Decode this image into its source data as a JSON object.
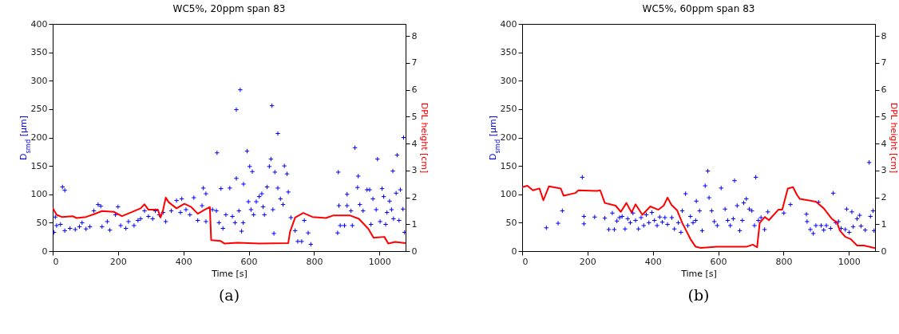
{
  "chart_data": [
    {
      "type": "scatter",
      "title": "WC5%, 20ppm span 83",
      "xlabel": "Time [s]",
      "ylabel": "D$_{smd}$ [μm]",
      "y2label": "DPL height [cm]",
      "xlim": [
        0,
        1080
      ],
      "xticks": [
        0,
        200,
        400,
        600,
        800,
        1000
      ],
      "ylim": [
        0,
        400
      ],
      "yticks": [
        0,
        50,
        100,
        150,
        200,
        250,
        300,
        350,
        400
      ],
      "y2lim": [
        0,
        8.45
      ],
      "y2ticks": [
        0,
        1,
        2,
        3,
        4,
        5,
        6,
        7,
        8
      ],
      "annotations": [
        "(a)"
      ],
      "series": [
        {
          "marker": "cross",
          "color": "#0000ff",
          "x": [
            4,
            8,
            12,
            24,
            30,
            37,
            37,
            53,
            69,
            82,
            90,
            102,
            114,
            126,
            139,
            147,
            151,
            167,
            175,
            192,
            200,
            208,
            224,
            232,
            249,
            261,
            269,
            281,
            293,
            306,
            314,
            326,
            338,
            346,
            363,
            379,
            391,
            395,
            408,
            420,
            432,
            444,
            457,
            461,
            469,
            469,
            489,
            501,
            503,
            509,
            515,
            521,
            530,
            542,
            550,
            558,
            562,
            562,
            570,
            574,
            578,
            583,
            584,
            595,
            599,
            603,
            607,
            611,
            615,
            623,
            632,
            640,
            644,
            648,
            656,
            663,
            668,
            671,
            674,
            677,
            680,
            689,
            689,
            697,
            705,
            709,
            717,
            721,
            729,
            742,
            750,
            762,
            770,
            782,
            790,
            872,
            874,
            876,
            880,
            893,
            901,
            901,
            913,
            917,
            925,
            933,
            935,
            940,
            950,
            962,
            970,
            974,
            980,
            990,
            994,
            1002,
            1008,
            1013,
            1019,
            1023,
            1031,
            1037,
            1041,
            1043,
            1051,
            1054,
            1060,
            1064,
            1072,
            1074,
            1077
          ],
          "values": [
            33,
            60,
            45,
            47,
            113,
            107,
            36,
            40,
            38,
            43,
            50,
            39,
            43,
            71,
            82,
            79,
            43,
            52,
            37,
            64,
            78,
            45,
            40,
            52,
            45,
            54,
            57,
            71,
            61,
            57,
            71,
            64,
            68,
            52,
            71,
            89,
            68,
            92,
            73,
            64,
            94,
            54,
            80,
            111,
            101,
            52,
            73,
            71,
            173,
            50,
            110,
            40,
            64,
            111,
            61,
            50,
            128,
            249,
            71,
            284,
            35,
            50,
            118,
            176,
            87,
            149,
            73,
            140,
            64,
            87,
            96,
            101,
            78,
            64,
            113,
            149,
            162,
            256,
            73,
            31,
            139,
            207,
            111,
            92,
            82,
            150,
            136,
            104,
            59,
            36,
            17,
            17,
            54,
            32,
            12,
            32,
            139,
            80,
            45,
            45,
            100,
            80,
            71,
            45,
            182,
            112,
            132,
            82,
            71,
            108,
            108,
            47,
            92,
            73,
            162,
            52,
            110,
            96,
            47,
            68,
            88,
            73,
            141,
            57,
            102,
            169,
            54,
            108,
            74,
            200,
            33
          ]
        },
        {
          "type": "line",
          "axis": "y2",
          "color": "#ff0000",
          "x": [
            0,
            12,
            28,
            61,
            73,
            102,
            126,
            151,
            187,
            212,
            240,
            269,
            281,
            293,
            322,
            330,
            338,
            346,
            355,
            379,
            403,
            424,
            444,
            465,
            481,
            485,
            513,
            526,
            566,
            632,
            721,
            726,
            742,
            767,
            795,
            836,
            860,
            909,
            937,
            966,
            982,
            1015,
            1027,
            1048,
            1080
          ],
          "values": [
            1.61,
            1.35,
            1.27,
            1.3,
            1.23,
            1.27,
            1.37,
            1.49,
            1.46,
            1.3,
            1.44,
            1.59,
            1.74,
            1.54,
            1.54,
            1.25,
            1.54,
            1.99,
            1.82,
            1.59,
            1.76,
            1.64,
            1.39,
            1.54,
            1.64,
            0.41,
            0.38,
            0.28,
            0.31,
            0.28,
            0.3,
            0.7,
            1.25,
            1.42,
            1.27,
            1.23,
            1.33,
            1.33,
            1.2,
            0.83,
            0.5,
            0.53,
            0.28,
            0.34,
            0.3
          ]
        }
      ]
    },
    {
      "type": "scatter",
      "title": "WC5%, 60ppm span 83",
      "xlabel": "Time [s]",
      "ylabel": "D$_{smd}$ [μm]",
      "y2label": "DPL height [cm]",
      "xlim": [
        0,
        1080
      ],
      "xticks": [
        0,
        200,
        400,
        600,
        800,
        1000
      ],
      "ylim": [
        0,
        400
      ],
      "yticks": [
        0,
        50,
        100,
        150,
        200,
        250,
        300,
        350,
        400
      ],
      "y2lim": [
        0,
        8.45
      ],
      "y2ticks": [
        0,
        1,
        2,
        3,
        4,
        5,
        6,
        7,
        8
      ],
      "annotations": [
        "(b)"
      ],
      "series": [
        {
          "marker": "cross",
          "color": "#0000ff",
          "x": [
            74,
            110,
            123,
            184,
            189,
            189,
            222,
            253,
            265,
            276,
            282,
            290,
            298,
            306,
            315,
            323,
            331,
            339,
            347,
            356,
            364,
            372,
            380,
            388,
            397,
            405,
            413,
            421,
            429,
            437,
            445,
            458,
            466,
            478,
            486,
            490,
            500,
            507,
            515,
            523,
            531,
            533,
            543,
            551,
            560,
            568,
            572,
            580,
            588,
            597,
            609,
            621,
            629,
            637,
            646,
            650,
            658,
            666,
            674,
            678,
            686,
            695,
            703,
            711,
            715,
            723,
            731,
            742,
            752,
            801,
            821,
            870,
            872,
            882,
            891,
            899,
            907,
            915,
            923,
            931,
            944,
            952,
            960,
            968,
            976,
            989,
            993,
            1001,
            1009,
            1013,
            1025,
            1033,
            1037,
            1050,
            1062,
            1066,
            1074,
            1077
          ],
          "values": [
            41,
            49,
            71,
            130,
            61,
            48,
            60,
            58,
            38,
            67,
            38,
            53,
            59,
            61,
            39,
            57,
            50,
            67,
            54,
            39,
            59,
            45,
            64,
            50,
            68,
            54,
            45,
            60,
            51,
            59,
            47,
            59,
            39,
            50,
            33,
            71,
            101,
            45,
            61,
            50,
            54,
            88,
            71,
            36,
            115,
            141,
            94,
            71,
            52,
            45,
            111,
            74,
            54,
            45,
            57,
            124,
            80,
            36,
            54,
            85,
            92,
            74,
            71,
            45,
            130,
            54,
            59,
            38,
            69,
            67,
            82,
            65,
            52,
            38,
            31,
            45,
            86,
            45,
            37,
            45,
            40,
            102,
            50,
            52,
            40,
            38,
            74,
            33,
            69,
            43,
            57,
            63,
            44,
            37,
            156,
            61,
            71,
            36
          ]
        },
        {
          "type": "line",
          "axis": "y2",
          "color": "#ff0000",
          "x": [
            0,
            16,
            33,
            53,
            65,
            82,
            118,
            127,
            163,
            172,
            229,
            239,
            253,
            286,
            302,
            319,
            335,
            347,
            368,
            392,
            417,
            433,
            445,
            457,
            474,
            490,
            515,
            531,
            547,
            596,
            686,
            706,
            719,
            727,
            743,
            755,
            784,
            796,
            813,
            829,
            841,
            850,
            899,
            923,
            948,
            964,
            972,
            989,
            1005,
            1025,
            1046,
            1080
          ],
          "values": [
            2.38,
            2.43,
            2.26,
            2.33,
            1.89,
            2.41,
            2.33,
            2.06,
            2.16,
            2.26,
            2.24,
            2.26,
            1.79,
            1.69,
            1.46,
            1.79,
            1.44,
            1.74,
            1.35,
            1.66,
            1.54,
            1.69,
            1.99,
            1.72,
            1.52,
            1.05,
            0.45,
            0.16,
            0.12,
            0.16,
            0.16,
            0.24,
            0.14,
            1.05,
            1.27,
            1.15,
            1.54,
            1.54,
            2.33,
            2.38,
            2.09,
            1.94,
            1.84,
            1.59,
            1.2,
            1.05,
            0.77,
            0.53,
            0.45,
            0.21,
            0.21,
            0.11
          ]
        }
      ]
    }
  ]
}
